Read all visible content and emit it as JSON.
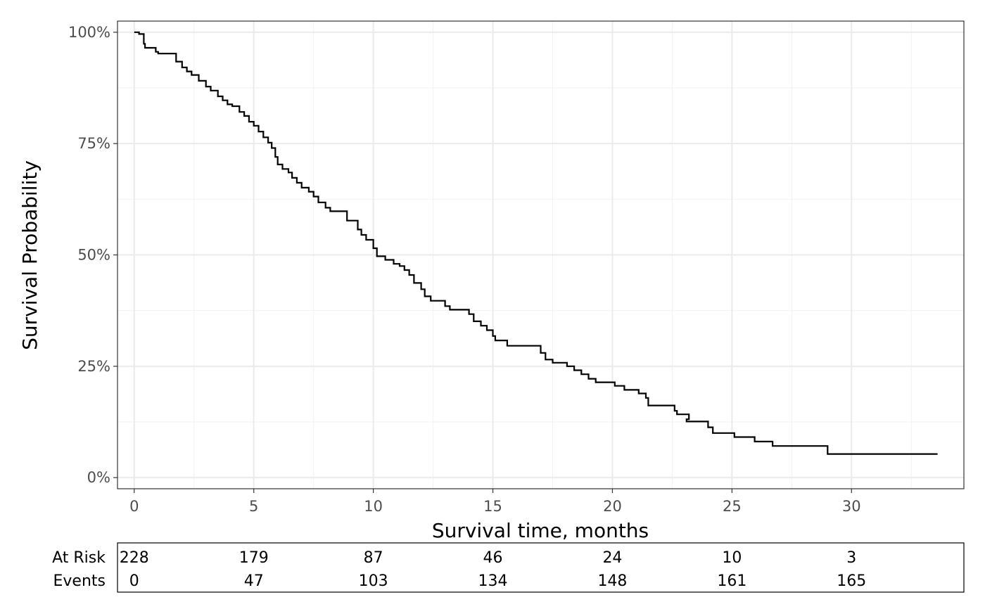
{
  "chart_data": {
    "type": "line",
    "title": "",
    "xlabel": "Survival time, months",
    "ylabel": "Survival Probability",
    "xlim": [
      -0.7,
      34.7
    ],
    "ylim": [
      -0.025,
      1.025
    ],
    "x_ticks": [
      0,
      5,
      10,
      15,
      20,
      25,
      30
    ],
    "x_tick_labels": [
      "0",
      "5",
      "10",
      "15",
      "20",
      "25",
      "30"
    ],
    "y_ticks": [
      0,
      0.25,
      0.5,
      0.75,
      1.0
    ],
    "y_tick_labels": [
      "0%",
      "25%",
      "50%",
      "75%",
      "100%"
    ],
    "grid": true,
    "line_color": "#000000",
    "series": [
      {
        "step": true,
        "points": [
          [
            0,
            1.0
          ],
          [
            0.2,
            0.996
          ],
          [
            0.4,
            0.974
          ],
          [
            0.45,
            0.965
          ],
          [
            0.9,
            0.956
          ],
          [
            1.0,
            0.952
          ],
          [
            1.75,
            0.934
          ],
          [
            2.0,
            0.921
          ],
          [
            2.2,
            0.912
          ],
          [
            2.4,
            0.904
          ],
          [
            2.7,
            0.891
          ],
          [
            3.0,
            0.878
          ],
          [
            3.2,
            0.869
          ],
          [
            3.5,
            0.856
          ],
          [
            3.7,
            0.847
          ],
          [
            3.9,
            0.838
          ],
          [
            4.1,
            0.834
          ],
          [
            4.4,
            0.821
          ],
          [
            4.6,
            0.812
          ],
          [
            4.8,
            0.799
          ],
          [
            5.0,
            0.79
          ],
          [
            5.2,
            0.777
          ],
          [
            5.4,
            0.764
          ],
          [
            5.6,
            0.752
          ],
          [
            5.75,
            0.74
          ],
          [
            5.9,
            0.72
          ],
          [
            6.0,
            0.703
          ],
          [
            6.2,
            0.693
          ],
          [
            6.45,
            0.685
          ],
          [
            6.6,
            0.673
          ],
          [
            6.8,
            0.662
          ],
          [
            7.0,
            0.651
          ],
          [
            7.3,
            0.642
          ],
          [
            7.5,
            0.631
          ],
          [
            7.7,
            0.618
          ],
          [
            8.0,
            0.606
          ],
          [
            8.2,
            0.598
          ],
          [
            8.9,
            0.577
          ],
          [
            9.35,
            0.557
          ],
          [
            9.5,
            0.545
          ],
          [
            9.7,
            0.534
          ],
          [
            10.0,
            0.515
          ],
          [
            10.15,
            0.497
          ],
          [
            10.5,
            0.489
          ],
          [
            10.85,
            0.48
          ],
          [
            11.1,
            0.475
          ],
          [
            11.3,
            0.466
          ],
          [
            11.5,
            0.455
          ],
          [
            11.7,
            0.437
          ],
          [
            12.0,
            0.423
          ],
          [
            12.15,
            0.407
          ],
          [
            12.4,
            0.397
          ],
          [
            13.0,
            0.385
          ],
          [
            13.2,
            0.377
          ],
          [
            14.0,
            0.367
          ],
          [
            14.2,
            0.351
          ],
          [
            14.5,
            0.341
          ],
          [
            14.75,
            0.331
          ],
          [
            15.0,
            0.318
          ],
          [
            15.1,
            0.308
          ],
          [
            15.6,
            0.296
          ],
          [
            17.0,
            0.28
          ],
          [
            17.2,
            0.265
          ],
          [
            17.5,
            0.258
          ],
          [
            18.1,
            0.25
          ],
          [
            18.4,
            0.241
          ],
          [
            18.7,
            0.232
          ],
          [
            19.0,
            0.222
          ],
          [
            19.3,
            0.214
          ],
          [
            20.1,
            0.206
          ],
          [
            20.5,
            0.197
          ],
          [
            21.1,
            0.189
          ],
          [
            21.4,
            0.179
          ],
          [
            21.5,
            0.162
          ],
          [
            22.6,
            0.15
          ],
          [
            22.7,
            0.142
          ],
          [
            23.2,
            0.131
          ],
          [
            23.1,
            0.126
          ],
          [
            24.0,
            0.113
          ],
          [
            24.2,
            0.1
          ],
          [
            25.1,
            0.091
          ],
          [
            25.95,
            0.081
          ],
          [
            26.7,
            0.071
          ],
          [
            29.0,
            0.053
          ],
          [
            33.6,
            0.053
          ]
        ]
      }
    ],
    "risk_table": {
      "times": [
        0,
        5,
        10,
        15,
        20,
        25,
        30
      ],
      "rows": [
        {
          "label": "At Risk",
          "values": [
            "228",
            "179",
            "87",
            "46",
            "24",
            "10",
            "3"
          ]
        },
        {
          "label": "Events",
          "values": [
            "0",
            "47",
            "103",
            "134",
            "148",
            "161",
            "165"
          ]
        }
      ]
    }
  }
}
